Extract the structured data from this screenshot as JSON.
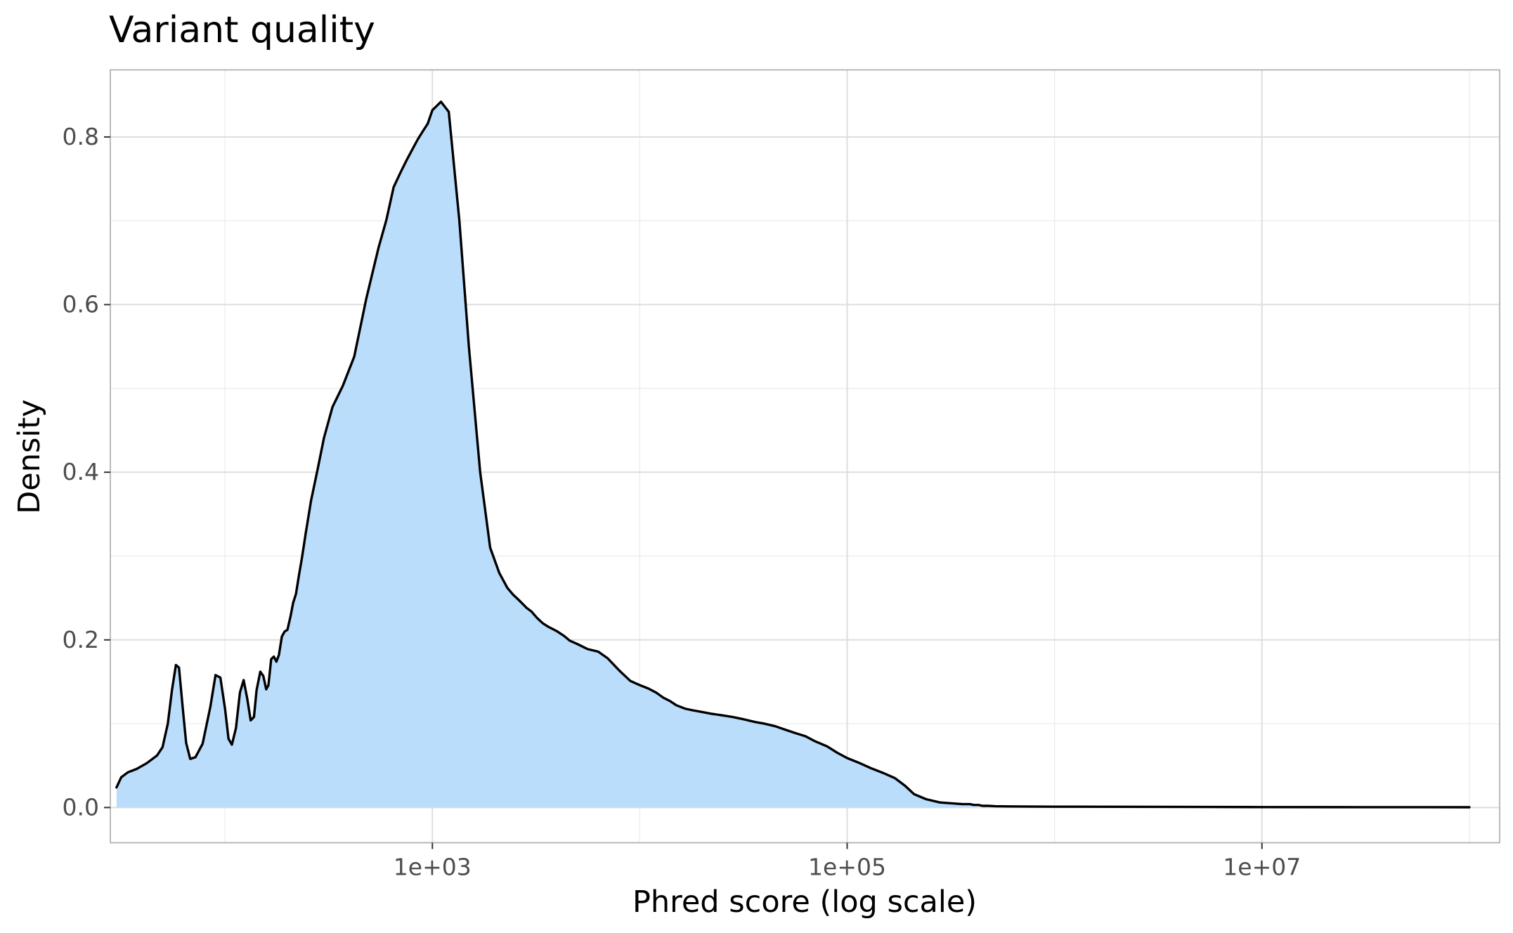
{
  "chart_data": {
    "type": "area",
    "title": "Variant quality",
    "xlabel": "Phred score (log scale)",
    "ylabel": "Density",
    "x_scale": "log10",
    "xlim": [
      28,
      140000000
    ],
    "ylim": [
      -0.042,
      0.88
    ],
    "x_ticks": [
      {
        "value": 1000,
        "label": "1e+03"
      },
      {
        "value": 100000,
        "label": "1e+05"
      },
      {
        "value": 10000000,
        "label": "1e+07"
      }
    ],
    "x_minor_ticks": [
      100,
      10000,
      1000000,
      100000000
    ],
    "y_ticks": [
      {
        "value": 0.0,
        "label": "0.0"
      },
      {
        "value": 0.2,
        "label": "0.2"
      },
      {
        "value": 0.4,
        "label": "0.4"
      },
      {
        "value": 0.6,
        "label": "0.6"
      },
      {
        "value": 0.8,
        "label": "0.8"
      }
    ],
    "y_minor_ticks": [
      0.1,
      0.3,
      0.5,
      0.7
    ],
    "grid": true,
    "fill_color": "#bbddfc",
    "line_color": "#000000",
    "fill_end_x": 420000,
    "series": [
      {
        "x": [
          30,
          31.6,
          34,
          37.5,
          42,
          47,
          50,
          53,
          55.5,
          58,
          60,
          62.5,
          65,
          68,
          72,
          78,
          85,
          90,
          95,
          100,
          104,
          108,
          113,
          118,
          123,
          128,
          133,
          138,
          142,
          148,
          153,
          158,
          162,
          167,
          172,
          177,
          182,
          188,
          194,
          200,
          207,
          213,
          220,
          227,
          235,
          245,
          260,
          280,
          300,
          330,
          370,
          420,
          480,
          550,
          600,
          650,
          700,
          750,
          800,
          850,
          900,
          950,
          1000,
          1100,
          1200,
          1350,
          1500,
          1700,
          1900,
          2100,
          2300,
          2450,
          2600,
          2750,
          2850,
          3000,
          3200,
          3400,
          3600,
          3800,
          4000,
          4300,
          4600,
          5000,
          5600,
          6300,
          7000,
          8000,
          9000,
          10000,
          11000,
          12000,
          13000,
          14000,
          15000,
          16500,
          18000,
          20000,
          22000,
          25000,
          28000,
          32000,
          36000,
          40000,
          45000,
          50000,
          56000,
          63000,
          70000,
          80000,
          90000,
          100000,
          115000,
          130000,
          150000,
          170000,
          190000,
          210000,
          240000,
          280000,
          320000,
          360000,
          390000,
          410000,
          430000,
          450000,
          480000,
          520000,
          600000,
          800000,
          1000000,
          2000000,
          5000000,
          10000000,
          30000000,
          100000000
        ],
        "y": [
          0.024,
          0.036,
          0.042,
          0.046,
          0.053,
          0.062,
          0.072,
          0.1,
          0.14,
          0.17,
          0.167,
          0.12,
          0.077,
          0.058,
          0.06,
          0.076,
          0.12,
          0.158,
          0.155,
          0.118,
          0.082,
          0.075,
          0.095,
          0.137,
          0.152,
          0.13,
          0.104,
          0.108,
          0.14,
          0.162,
          0.157,
          0.141,
          0.146,
          0.177,
          0.18,
          0.174,
          0.182,
          0.204,
          0.21,
          0.212,
          0.228,
          0.244,
          0.255,
          0.276,
          0.298,
          0.327,
          0.366,
          0.404,
          0.441,
          0.478,
          0.503,
          0.538,
          0.607,
          0.668,
          0.701,
          0.74,
          0.757,
          0.772,
          0.785,
          0.797,
          0.807,
          0.816,
          0.832,
          0.842,
          0.83,
          0.7,
          0.55,
          0.4,
          0.31,
          0.28,
          0.262,
          0.254,
          0.248,
          0.242,
          0.238,
          0.234,
          0.226,
          0.22,
          0.216,
          0.213,
          0.21,
          0.205,
          0.199,
          0.195,
          0.189,
          0.186,
          0.178,
          0.163,
          0.151,
          0.146,
          0.142,
          0.137,
          0.131,
          0.127,
          0.122,
          0.118,
          0.116,
          0.114,
          0.112,
          0.11,
          0.108,
          0.105,
          0.102,
          0.1,
          0.097,
          0.093,
          0.089,
          0.085,
          0.079,
          0.073,
          0.065,
          0.059,
          0.053,
          0.047,
          0.041,
          0.035,
          0.026,
          0.016,
          0.01,
          0.006,
          0.005,
          0.004,
          0.004,
          0.003,
          0.003,
          0.002,
          0.002,
          0.0015,
          0.0013,
          0.0011,
          0.001,
          0.0009,
          0.0007,
          0.0005,
          0.0004,
          0.0003
        ]
      }
    ]
  }
}
